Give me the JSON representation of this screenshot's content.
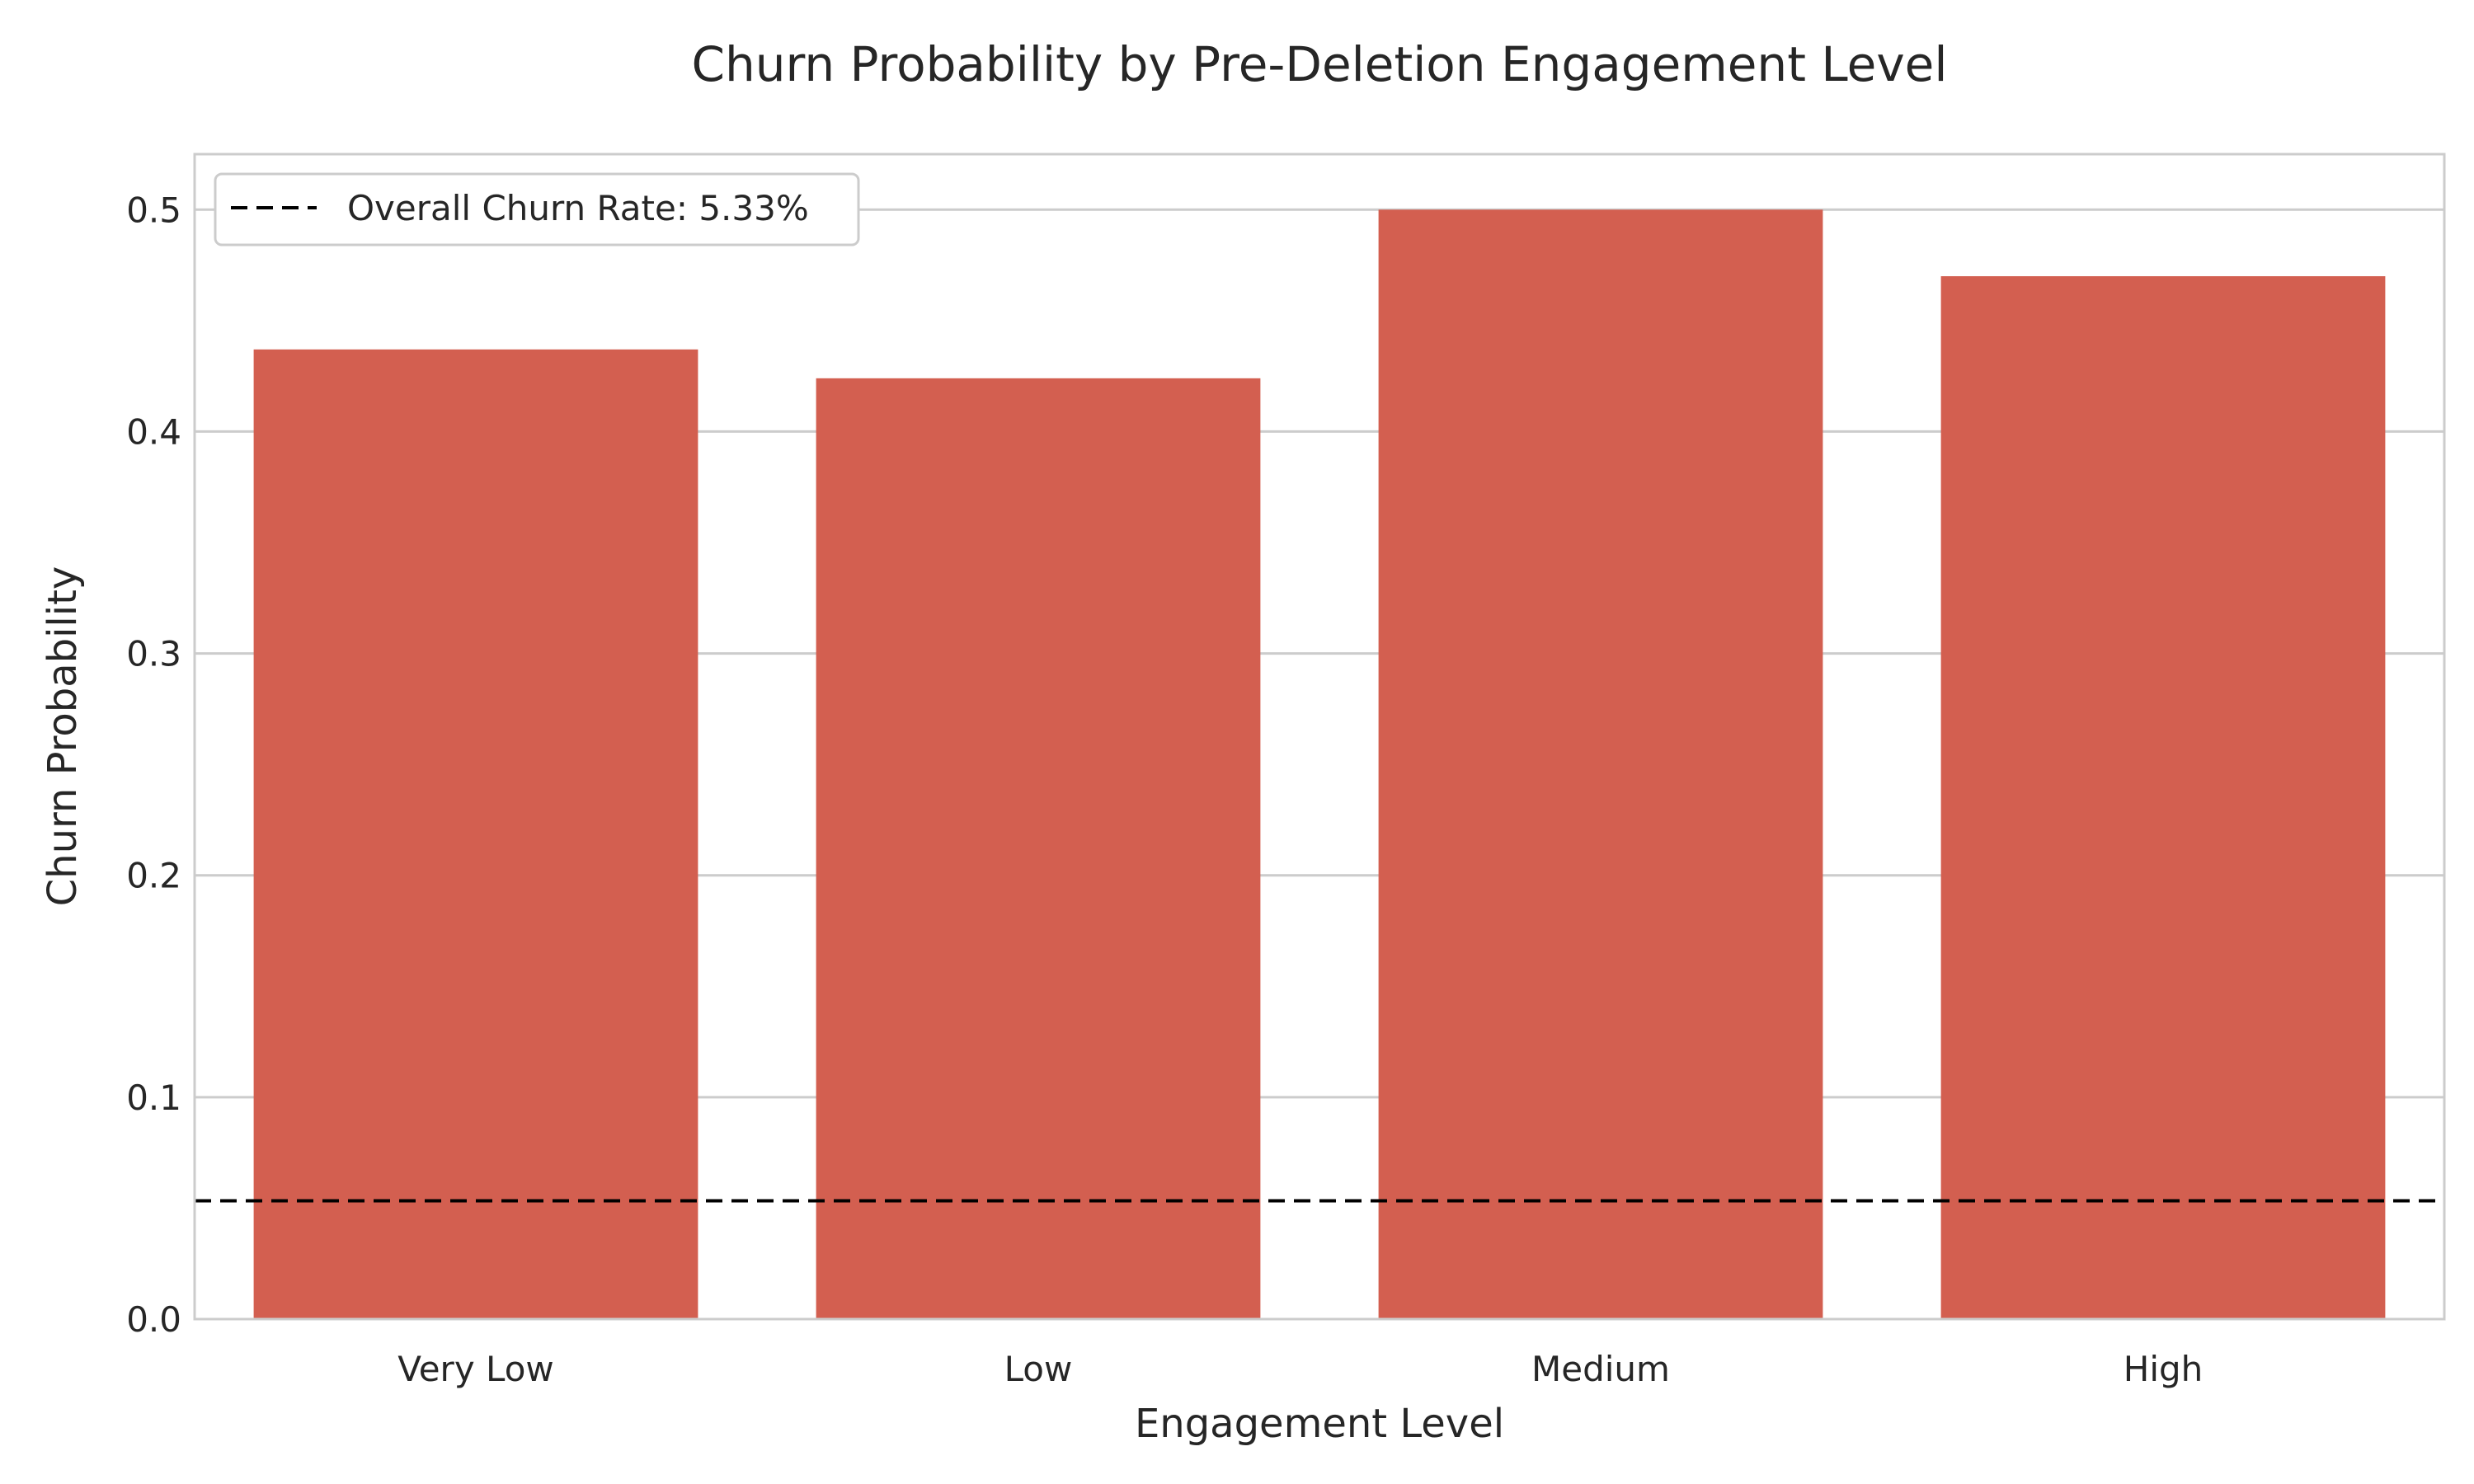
{
  "chart_data": {
    "type": "bar",
    "title": "Churn Probability by Pre-Deletion Engagement Level",
    "xlabel": "Engagement Level",
    "ylabel": "Churn Probability",
    "categories": [
      "Very Low",
      "Low",
      "Medium",
      "High"
    ],
    "values": [
      0.437,
      0.424,
      0.5,
      0.47
    ],
    "ylim": [
      0,
      0.525
    ],
    "yticks": [
      0.0,
      0.1,
      0.2,
      0.3,
      0.4,
      0.5
    ],
    "ytick_labels": [
      "0.0",
      "0.1",
      "0.2",
      "0.3",
      "0.4",
      "0.5"
    ],
    "grid": true,
    "bar_color": "#d35f50",
    "reference_line": {
      "value": 0.0533,
      "style": "dashed",
      "color": "#000000",
      "label": "Overall Churn Rate: 5.33%"
    },
    "legend": {
      "placement": "top-left",
      "entries": [
        "Overall Churn Rate: 5.33%"
      ]
    }
  }
}
